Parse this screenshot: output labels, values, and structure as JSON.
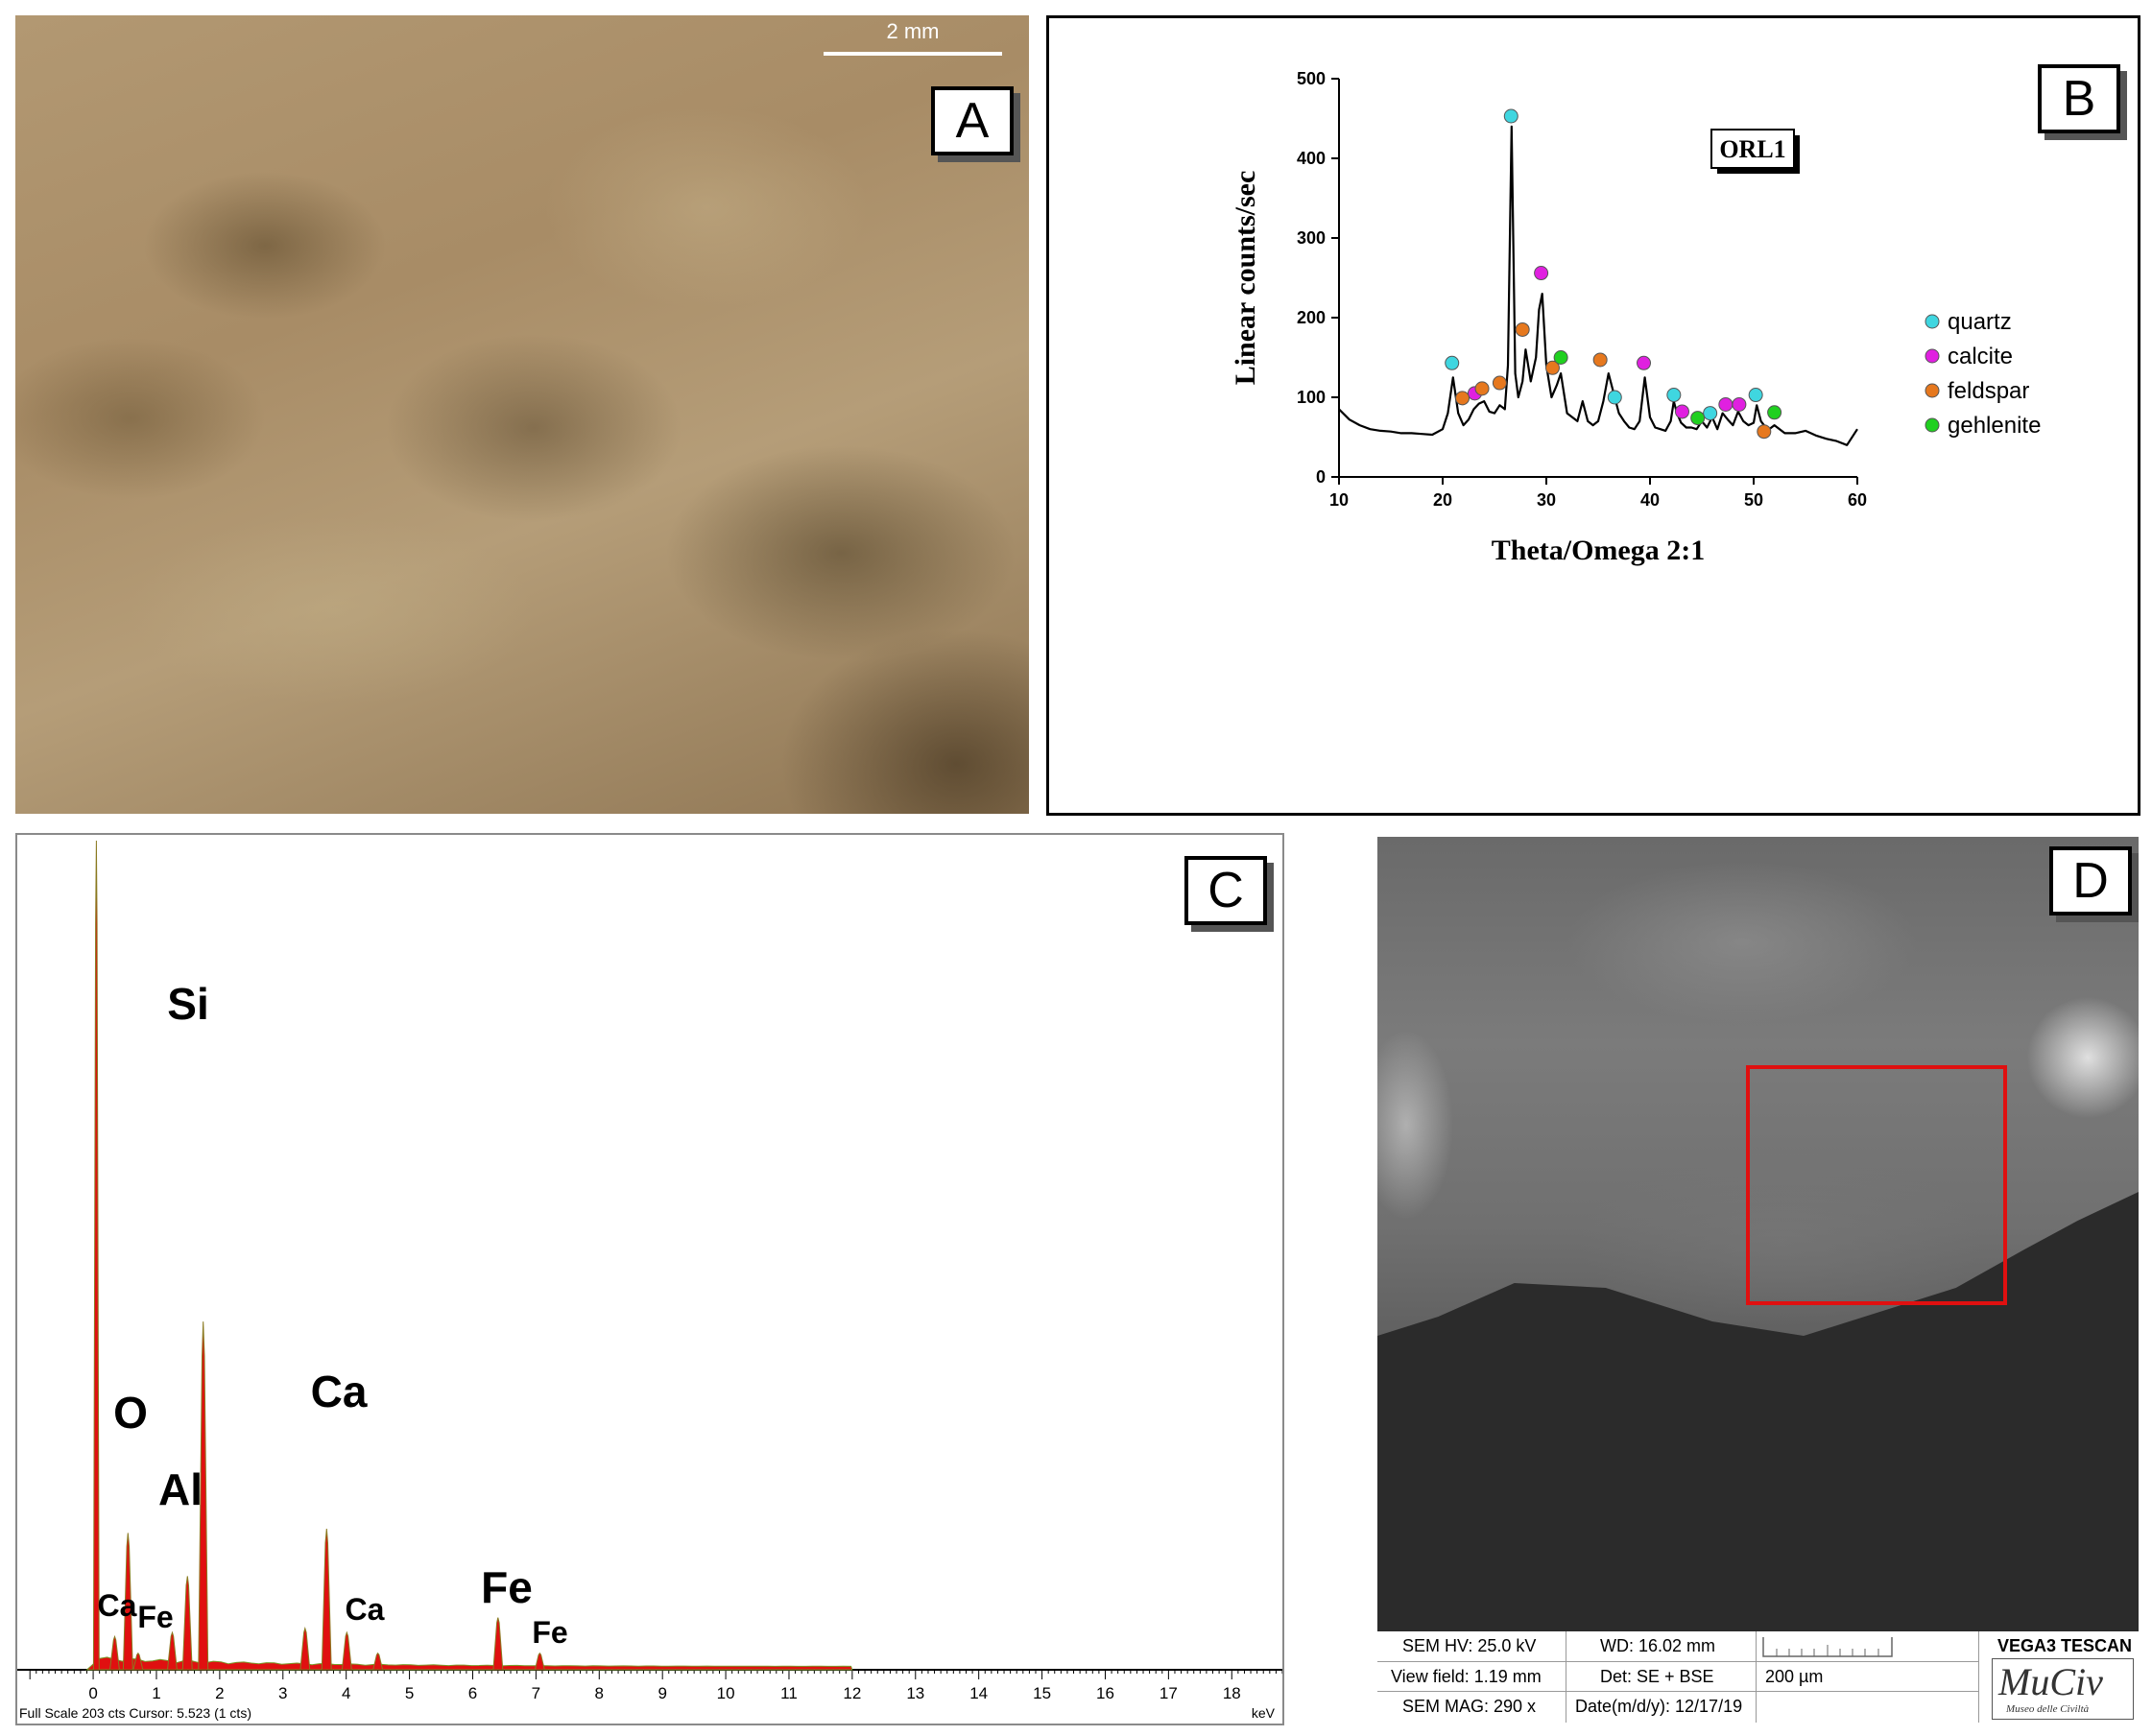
{
  "panels": {
    "a": {
      "letter": "A",
      "scale_label": "2 mm"
    },
    "b": {
      "letter": "B"
    },
    "c": {
      "letter": "C"
    },
    "d": {
      "letter": "D"
    }
  },
  "sem_info": {
    "hv": "SEM HV: 25.0 kV",
    "wd": "WD: 16.02 mm",
    "instrument": "VEGA3 TESCAN",
    "view_field": "View field: 1.19 mm",
    "det": "Det: SE + BSE",
    "scale": "200 µm",
    "mag": "SEM MAG: 290 x",
    "date": "Date(m/d/y): 12/17/19",
    "logo_text": "MuCiv",
    "logo_sub": "Museo delle Civiltà"
  },
  "chart_data": [
    {
      "type": "line",
      "sample_label": "ORL1",
      "xlabel": "Theta/Omega 2:1",
      "ylabel": "Linear counts/sec",
      "xlim": [
        10,
        60
      ],
      "ylim": [
        0,
        500
      ],
      "xticks": [
        10,
        20,
        30,
        40,
        50,
        60
      ],
      "yticks": [
        0,
        100,
        200,
        300,
        400,
        500
      ],
      "legend_position": "right",
      "series": [
        {
          "name": "",
          "color": "#000000",
          "x": [
            10,
            11,
            12,
            13,
            14,
            15,
            16,
            17,
            18,
            19,
            20,
            20.5,
            21,
            21.5,
            22,
            22.5,
            23,
            23.5,
            24,
            24.5,
            25,
            25.5,
            26,
            26.3,
            26.65,
            27,
            27.3,
            27.7,
            28,
            28.5,
            29,
            29.3,
            29.6,
            30,
            30.5,
            31,
            31.4,
            32,
            32.5,
            33,
            33.5,
            34,
            34.5,
            35,
            35.5,
            36,
            36.5,
            37,
            37.5,
            38,
            38.5,
            39,
            39.5,
            40,
            40.5,
            41,
            41.5,
            42,
            42.3,
            42.6,
            43,
            43.5,
            44,
            44.5,
            45,
            45.5,
            46,
            46.5,
            47,
            47.5,
            48,
            48.5,
            49,
            49.5,
            50,
            50.3,
            50.7,
            51,
            51.5,
            52,
            53,
            54,
            55,
            56,
            57,
            58,
            59,
            60
          ],
          "y": [
            85,
            72,
            65,
            60,
            58,
            57,
            55,
            55,
            54,
            53,
            60,
            80,
            125,
            80,
            65,
            72,
            85,
            92,
            95,
            82,
            80,
            90,
            85,
            140,
            440,
            130,
            100,
            120,
            160,
            120,
            150,
            210,
            230,
            140,
            100,
            115,
            130,
            80,
            75,
            70,
            95,
            70,
            65,
            70,
            95,
            130,
            105,
            80,
            70,
            62,
            60,
            70,
            125,
            75,
            62,
            60,
            58,
            70,
            95,
            80,
            68,
            62,
            62,
            60,
            70,
            62,
            75,
            60,
            80,
            72,
            65,
            82,
            70,
            65,
            68,
            90,
            70,
            65,
            60,
            65,
            55,
            55,
            58,
            52,
            48,
            45,
            40,
            60
          ]
        }
      ],
      "markers": [
        {
          "phase": "quartz",
          "x": 20.9,
          "y": 143
        },
        {
          "phase": "quartz",
          "x": 26.6,
          "y": 453
        },
        {
          "phase": "quartz",
          "x": 36.6,
          "y": 100
        },
        {
          "phase": "quartz",
          "x": 42.3,
          "y": 103
        },
        {
          "phase": "quartz",
          "x": 45.8,
          "y": 80
        },
        {
          "phase": "quartz",
          "x": 50.2,
          "y": 103
        },
        {
          "phase": "calcite",
          "x": 23.1,
          "y": 105
        },
        {
          "phase": "calcite",
          "x": 29.5,
          "y": 256
        },
        {
          "phase": "calcite",
          "x": 39.4,
          "y": 143
        },
        {
          "phase": "calcite",
          "x": 43.1,
          "y": 82
        },
        {
          "phase": "calcite",
          "x": 47.3,
          "y": 91
        },
        {
          "phase": "calcite",
          "x": 48.6,
          "y": 91
        },
        {
          "phase": "feldspar",
          "x": 21.9,
          "y": 99
        },
        {
          "phase": "feldspar",
          "x": 23.8,
          "y": 111
        },
        {
          "phase": "feldspar",
          "x": 25.5,
          "y": 118
        },
        {
          "phase": "feldspar",
          "x": 27.7,
          "y": 185
        },
        {
          "phase": "feldspar",
          "x": 30.6,
          "y": 137
        },
        {
          "phase": "feldspar",
          "x": 35.2,
          "y": 147
        },
        {
          "phase": "feldspar",
          "x": 51.0,
          "y": 57
        },
        {
          "phase": "gehlenite",
          "x": 31.4,
          "y": 150
        },
        {
          "phase": "gehlenite",
          "x": 44.6,
          "y": 74
        },
        {
          "phase": "gehlenite",
          "x": 52.0,
          "y": 81
        }
      ],
      "legend": [
        {
          "label": "quartz",
          "color": "#3fd6e0"
        },
        {
          "label": "calcite",
          "color": "#e020e0"
        },
        {
          "label": "feldspar",
          "color": "#e6781e"
        },
        {
          "label": "gehlenite",
          "color": "#20d020"
        }
      ]
    },
    {
      "type": "bar",
      "xlabel": "keV",
      "xlim": [
        -1.2,
        18.8
      ],
      "xticks": [
        0,
        1,
        2,
        3,
        4,
        5,
        6,
        7,
        8,
        9,
        10,
        11,
        12,
        13,
        14,
        15,
        16,
        17,
        18
      ],
      "ylim": [
        0,
        1
      ],
      "footer": "Full Scale 203 cts Cursor: 5.523  (1 cts)",
      "peak_color": "#e01010",
      "peaks": [
        {
          "kev": 0.05,
          "height": 1.0,
          "label": ""
        },
        {
          "kev": 0.34,
          "height": 0.04,
          "label": "Ca"
        },
        {
          "kev": 0.55,
          "height": 0.165,
          "label": "O"
        },
        {
          "kev": 0.71,
          "height": 0.02,
          "label": "Fe"
        },
        {
          "kev": 1.25,
          "height": 0.045,
          "label": ""
        },
        {
          "kev": 1.49,
          "height": 0.113,
          "label": "Al"
        },
        {
          "kev": 1.74,
          "height": 0.42,
          "label": "Si"
        },
        {
          "kev": 3.35,
          "height": 0.05,
          "label": ""
        },
        {
          "kev": 3.69,
          "height": 0.17,
          "label": "Ca"
        },
        {
          "kev": 4.01,
          "height": 0.045,
          "label": "Ca"
        },
        {
          "kev": 4.5,
          "height": 0.02,
          "label": ""
        },
        {
          "kev": 6.4,
          "height": 0.063,
          "label": "Fe"
        },
        {
          "kev": 7.06,
          "height": 0.02,
          "label": "Fe"
        }
      ],
      "labels": [
        {
          "text": "Si",
          "size": 46
        },
        {
          "text": "O",
          "size": 46
        },
        {
          "text": "Ca",
          "size": 46
        },
        {
          "text": "Al",
          "size": 46
        },
        {
          "text": "Fe",
          "size": 46
        },
        {
          "text": "Ca",
          "size": 32
        },
        {
          "text": "Fe",
          "size": 32
        },
        {
          "text": "Ca",
          "size": 32
        },
        {
          "text": "Fe",
          "size": 32
        }
      ]
    }
  ]
}
